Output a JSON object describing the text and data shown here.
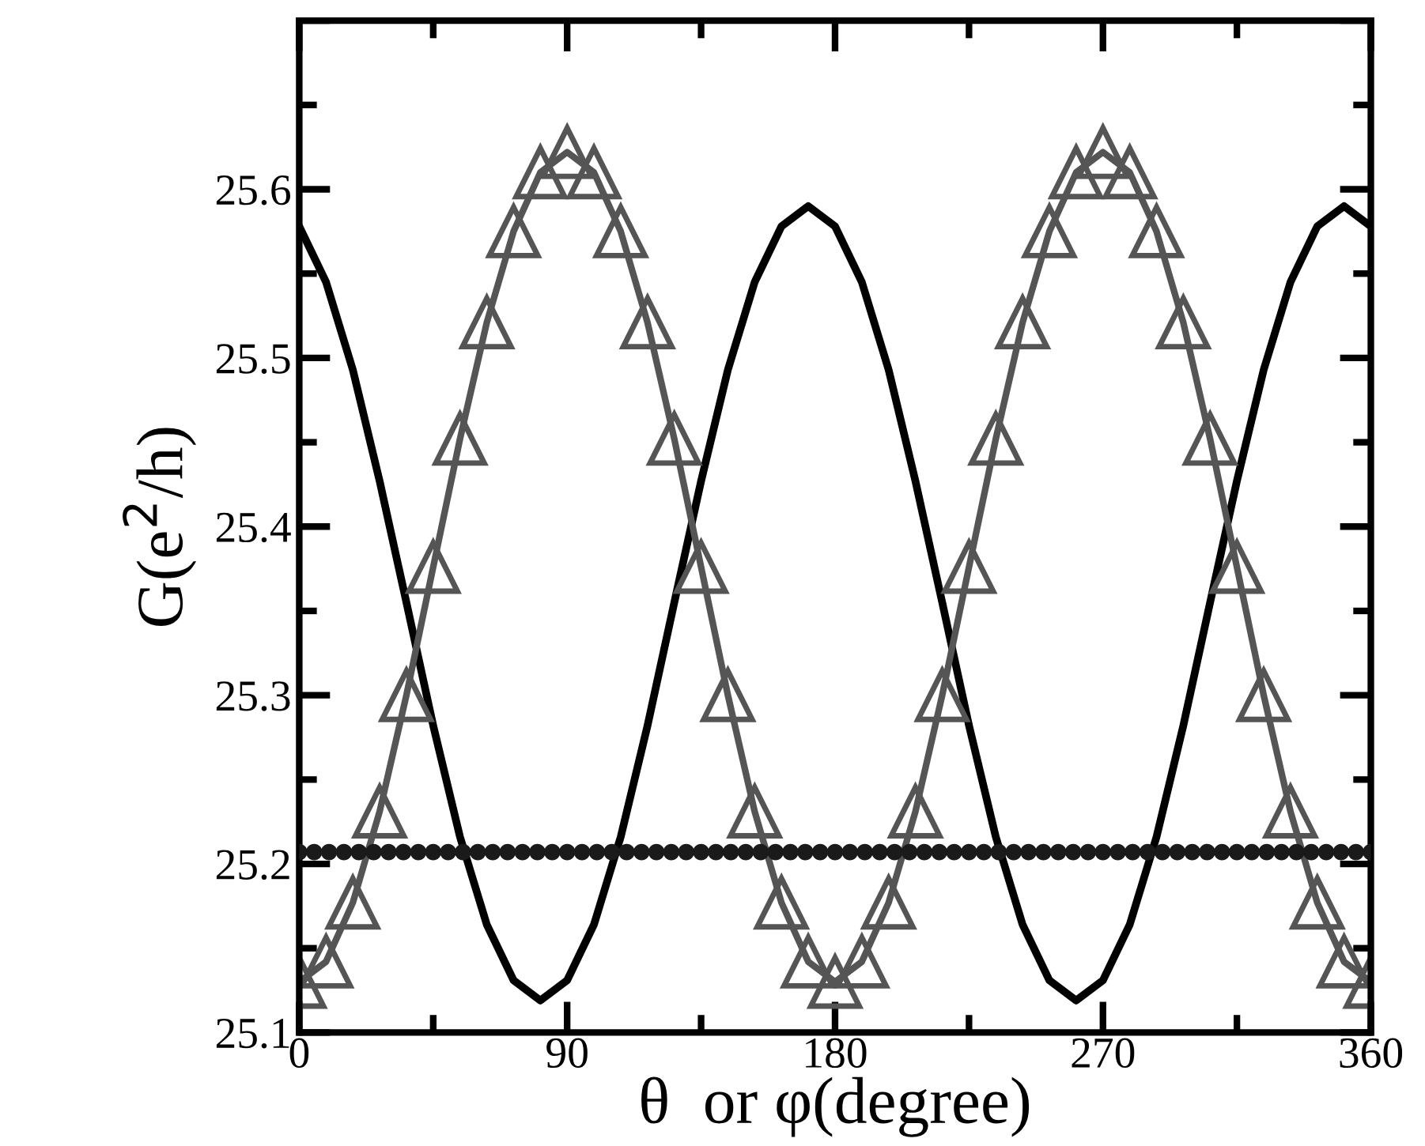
{
  "chart_data": {
    "type": "line",
    "xlabel": "θ  or φ(degree)",
    "ylabel": "G(e$^{2}$/h)",
    "xlim": [
      0,
      360
    ],
    "xticks": [
      0,
      90,
      180,
      270,
      360
    ],
    "ylim": [
      25.1,
      25.7
    ],
    "yticks": [
      25.1,
      25.2,
      25.3,
      25.4,
      25.5,
      25.6,
      {
        "value": 25.7,
        "label": null
      }
    ],
    "grid": false,
    "legend": false,
    "line_style": "solid",
    "series": [
      {
        "color": "#000000",
        "marker": "none",
        "x": [
          0,
          9,
          18,
          27,
          36,
          45,
          54,
          63,
          72,
          81,
          90,
          99,
          108,
          117,
          126,
          135,
          144,
          153,
          162,
          171,
          180,
          189,
          198,
          207,
          216,
          225,
          234,
          243,
          252,
          261,
          270,
          279,
          288,
          297,
          306,
          315,
          324,
          333,
          342,
          351,
          360
        ],
        "values": [
          25.578,
          25.545,
          25.493,
          25.427,
          25.355,
          25.282,
          25.216,
          25.164,
          25.131,
          25.119,
          25.131,
          25.164,
          25.216,
          25.282,
          25.355,
          25.427,
          25.493,
          25.545,
          25.578,
          25.59,
          25.578,
          25.545,
          25.493,
          25.427,
          25.355,
          25.282,
          25.216,
          25.164,
          25.131,
          25.119,
          25.131,
          25.164,
          25.216,
          25.282,
          25.355,
          25.427,
          25.493,
          25.545,
          25.578,
          25.59,
          25.578
        ]
      },
      {
        "color": "#555555",
        "marker": "triangle",
        "x": [
          0,
          9,
          18,
          27,
          36,
          45,
          54,
          63,
          72,
          81,
          90,
          99,
          108,
          117,
          126,
          135,
          144,
          153,
          162,
          171,
          180,
          189,
          198,
          207,
          216,
          225,
          234,
          243,
          252,
          261,
          270,
          279,
          288,
          297,
          306,
          315,
          324,
          333,
          342,
          351,
          360
        ],
        "values": [
          25.13,
          25.142,
          25.177,
          25.231,
          25.3,
          25.376,
          25.452,
          25.521,
          25.575,
          25.61,
          25.622,
          25.61,
          25.575,
          25.521,
          25.452,
          25.376,
          25.3,
          25.231,
          25.177,
          25.142,
          25.13,
          25.142,
          25.177,
          25.231,
          25.3,
          25.376,
          25.452,
          25.521,
          25.575,
          25.61,
          25.622,
          25.61,
          25.575,
          25.521,
          25.452,
          25.376,
          25.3,
          25.231,
          25.177,
          25.142,
          25.13
        ]
      },
      {
        "type": "scatter",
        "color": "#1a1a1a",
        "marker": "circle",
        "x": [
          0,
          5,
          10,
          15,
          20,
          25,
          30,
          35,
          40,
          45,
          50,
          55,
          60,
          65,
          70,
          75,
          80,
          85,
          90,
          95,
          100,
          105,
          110,
          115,
          120,
          125,
          130,
          135,
          140,
          145,
          150,
          155,
          160,
          165,
          170,
          175,
          180,
          185,
          190,
          195,
          200,
          205,
          210,
          215,
          220,
          225,
          230,
          235,
          240,
          245,
          250,
          255,
          260,
          265,
          270,
          275,
          280,
          285,
          290,
          295,
          300,
          305,
          310,
          315,
          320,
          325,
          330,
          335,
          340,
          345,
          350,
          355,
          360
        ],
        "values": [
          25.207,
          25.207,
          25.207,
          25.207,
          25.207,
          25.207,
          25.207,
          25.207,
          25.207,
          25.207,
          25.207,
          25.207,
          25.207,
          25.207,
          25.207,
          25.207,
          25.207,
          25.207,
          25.207,
          25.207,
          25.207,
          25.207,
          25.207,
          25.207,
          25.207,
          25.207,
          25.207,
          25.207,
          25.207,
          25.207,
          25.207,
          25.207,
          25.207,
          25.207,
          25.207,
          25.207,
          25.207,
          25.207,
          25.207,
          25.207,
          25.207,
          25.207,
          25.207,
          25.207,
          25.207,
          25.207,
          25.207,
          25.207,
          25.207,
          25.207,
          25.207,
          25.207,
          25.207,
          25.207,
          25.207,
          25.207,
          25.207,
          25.207,
          25.207,
          25.207,
          25.207,
          25.207,
          25.207,
          25.207,
          25.207,
          25.207,
          25.207,
          25.207,
          25.207,
          25.207,
          25.207,
          25.207,
          25.207
        ]
      }
    ]
  }
}
